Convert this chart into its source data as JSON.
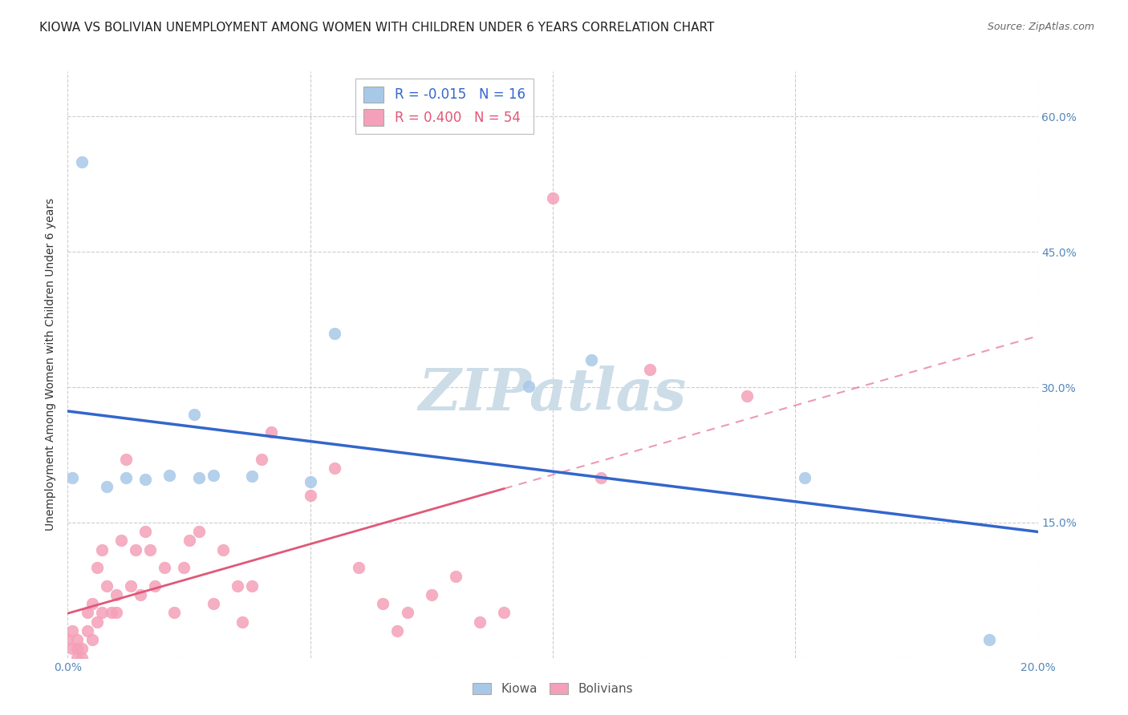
{
  "title": "KIOWA VS BOLIVIAN UNEMPLOYMENT AMONG WOMEN WITH CHILDREN UNDER 6 YEARS CORRELATION CHART",
  "source": "Source: ZipAtlas.com",
  "ylabel": "Unemployment Among Women with Children Under 6 years",
  "xlim": [
    0.0,
    0.2
  ],
  "ylim": [
    0.0,
    0.65
  ],
  "xticks": [
    0.0,
    0.05,
    0.1,
    0.15,
    0.2
  ],
  "xticklabels": [
    "0.0%",
    "",
    "",
    "",
    "20.0%"
  ],
  "yticks": [
    0.0,
    0.15,
    0.3,
    0.45,
    0.6
  ],
  "yticklabels": [
    "",
    "15.0%",
    "30.0%",
    "45.0%",
    "60.0%"
  ],
  "kiowa_R": -0.015,
  "kiowa_N": 16,
  "bolivian_R": 0.4,
  "bolivian_N": 54,
  "kiowa_color": "#a8c8e8",
  "kiowa_line_color": "#3366cc",
  "bolivian_color": "#f4a0b8",
  "bolivian_line_color": "#e05878",
  "kiowa_x": [
    0.001,
    0.008,
    0.012,
    0.016,
    0.021,
    0.026,
    0.027,
    0.03,
    0.038,
    0.05,
    0.055,
    0.095,
    0.108,
    0.152,
    0.19,
    0.003
  ],
  "kiowa_y": [
    0.2,
    0.19,
    0.2,
    0.198,
    0.202,
    0.27,
    0.2,
    0.202,
    0.201,
    0.195,
    0.36,
    0.301,
    0.33,
    0.2,
    0.02,
    0.55
  ],
  "bolivian_x": [
    0.0,
    0.001,
    0.001,
    0.002,
    0.002,
    0.002,
    0.003,
    0.003,
    0.004,
    0.004,
    0.005,
    0.005,
    0.006,
    0.006,
    0.007,
    0.007,
    0.008,
    0.009,
    0.01,
    0.01,
    0.011,
    0.012,
    0.013,
    0.014,
    0.015,
    0.016,
    0.017,
    0.018,
    0.02,
    0.022,
    0.024,
    0.025,
    0.027,
    0.03,
    0.032,
    0.035,
    0.036,
    0.038,
    0.04,
    0.042,
    0.05,
    0.055,
    0.06,
    0.065,
    0.068,
    0.07,
    0.075,
    0.08,
    0.085,
    0.09,
    0.1,
    0.11,
    0.12,
    0.14
  ],
  "bolivian_y": [
    0.02,
    0.01,
    0.03,
    0.0,
    0.01,
    0.02,
    0.0,
    0.01,
    0.03,
    0.05,
    0.02,
    0.06,
    0.04,
    0.1,
    0.12,
    0.05,
    0.08,
    0.05,
    0.05,
    0.07,
    0.13,
    0.22,
    0.08,
    0.12,
    0.07,
    0.14,
    0.12,
    0.08,
    0.1,
    0.05,
    0.1,
    0.13,
    0.14,
    0.06,
    0.12,
    0.08,
    0.04,
    0.08,
    0.22,
    0.25,
    0.18,
    0.21,
    0.1,
    0.06,
    0.03,
    0.05,
    0.07,
    0.09,
    0.04,
    0.05,
    0.51,
    0.2,
    0.32,
    0.29
  ],
  "background_color": "#ffffff",
  "title_fontsize": 11,
  "axis_label_fontsize": 10,
  "tick_fontsize": 10,
  "legend_fontsize": 12,
  "watermark": "ZIPatlas",
  "watermark_color": "#ccdde8"
}
